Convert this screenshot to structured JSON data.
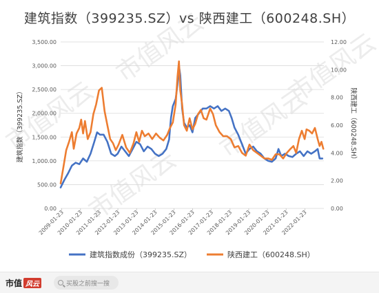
{
  "chart_data": {
    "type": "line",
    "title": "建筑指数（399235.SZ）vs 陕西建工（600248.SH）",
    "ylabel_left": "建筑指数（399235.SZ）",
    "ylabel_right": "陕西建工（600248.SH）",
    "ylim_left": [
      0,
      3500
    ],
    "ylim_right": [
      0,
      12
    ],
    "yticks_left": [
      "0.00",
      "500.00",
      "1,000.00",
      "1,500.00",
      "2,000.00",
      "2,500.00",
      "3,000.00",
      "3,500.00"
    ],
    "yticks_right": [
      "0.00",
      "2.00",
      "4.00",
      "6.00",
      "8.00",
      "10.00",
      "12.00"
    ],
    "xlim": [
      2009.0,
      2023.08
    ],
    "x_tick_labels": [
      "2009-01-23",
      "2010-01-23",
      "2011-01-23",
      "2012-01-23",
      "2013-01-23",
      "2014-01-23",
      "2015-01-23",
      "2016-01-23",
      "2017-01-23",
      "2018-01-23",
      "2019-01-23",
      "2020-01-23",
      "2021-01-23",
      "2022-01-23"
    ],
    "x_tick_years": [
      2009.06,
      2010.06,
      2011.06,
      2012.06,
      2013.06,
      2014.06,
      2015.06,
      2016.06,
      2017.06,
      2018.06,
      2019.06,
      2020.06,
      2021.06,
      2022.06
    ],
    "grid": true,
    "legend_position": "bottom",
    "series": [
      {
        "name": "建筑指数成份（399235.SZ）",
        "axis": "left",
        "color": "#4472C4",
        "points": [
          [
            2009.0,
            440
          ],
          [
            2009.2,
            600
          ],
          [
            2009.4,
            740
          ],
          [
            2009.6,
            900
          ],
          [
            2009.8,
            960
          ],
          [
            2010.0,
            930
          ],
          [
            2010.2,
            1050
          ],
          [
            2010.4,
            980
          ],
          [
            2010.6,
            1150
          ],
          [
            2010.8,
            1400
          ],
          [
            2010.95,
            1600
          ],
          [
            2011.1,
            1550
          ],
          [
            2011.3,
            1550
          ],
          [
            2011.5,
            1400
          ],
          [
            2011.7,
            1150
          ],
          [
            2011.9,
            1100
          ],
          [
            2012.05,
            1150
          ],
          [
            2012.25,
            1300
          ],
          [
            2012.45,
            1200
          ],
          [
            2012.65,
            1100
          ],
          [
            2012.85,
            1250
          ],
          [
            2013.05,
            1400
          ],
          [
            2013.25,
            1350
          ],
          [
            2013.45,
            1200
          ],
          [
            2013.65,
            1300
          ],
          [
            2013.85,
            1250
          ],
          [
            2014.05,
            1150
          ],
          [
            2014.25,
            1100
          ],
          [
            2014.45,
            1150
          ],
          [
            2014.65,
            1250
          ],
          [
            2014.8,
            1450
          ],
          [
            2014.9,
            1900
          ],
          [
            2015.0,
            2150
          ],
          [
            2015.15,
            2300
          ],
          [
            2015.25,
            2600
          ],
          [
            2015.33,
            3000
          ],
          [
            2015.4,
            2800
          ],
          [
            2015.5,
            2100
          ],
          [
            2015.6,
            1800
          ],
          [
            2015.75,
            1700
          ],
          [
            2015.9,
            1750
          ],
          [
            2016.05,
            1600
          ],
          [
            2016.2,
            1900
          ],
          [
            2016.4,
            2000
          ],
          [
            2016.6,
            2100
          ],
          [
            2016.8,
            2100
          ],
          [
            2017.0,
            2150
          ],
          [
            2017.2,
            2100
          ],
          [
            2017.4,
            2150
          ],
          [
            2017.6,
            2050
          ],
          [
            2017.8,
            2100
          ],
          [
            2018.0,
            2050
          ],
          [
            2018.15,
            1900
          ],
          [
            2018.3,
            1700
          ],
          [
            2018.5,
            1550
          ],
          [
            2018.7,
            1350
          ],
          [
            2018.9,
            1150
          ],
          [
            2019.1,
            1250
          ],
          [
            2019.3,
            1300
          ],
          [
            2019.5,
            1200
          ],
          [
            2019.7,
            1150
          ],
          [
            2019.9,
            1050
          ],
          [
            2020.1,
            1000
          ],
          [
            2020.3,
            980
          ],
          [
            2020.5,
            1050
          ],
          [
            2020.65,
            1250
          ],
          [
            2020.8,
            1100
          ],
          [
            2021.0,
            1150
          ],
          [
            2021.2,
            1100
          ],
          [
            2021.4,
            1080
          ],
          [
            2021.6,
            1150
          ],
          [
            2021.8,
            1200
          ],
          [
            2022.0,
            1100
          ],
          [
            2022.2,
            1200
          ],
          [
            2022.4,
            1150
          ],
          [
            2022.6,
            1200
          ],
          [
            2022.75,
            1250
          ],
          [
            2022.85,
            1050
          ],
          [
            2023.0,
            1050
          ]
        ]
      },
      {
        "name": "陕西建工（600248.SH）",
        "axis": "right",
        "color": "#ED7D31",
        "points": [
          [
            2009.0,
            1.8
          ],
          [
            2009.15,
            3.0
          ],
          [
            2009.3,
            4.2
          ],
          [
            2009.45,
            4.8
          ],
          [
            2009.6,
            5.5
          ],
          [
            2009.7,
            4.3
          ],
          [
            2009.85,
            5.4
          ],
          [
            2010.0,
            5.8
          ],
          [
            2010.1,
            6.4
          ],
          [
            2010.2,
            5.4
          ],
          [
            2010.3,
            6.3
          ],
          [
            2010.45,
            5.0
          ],
          [
            2010.6,
            5.5
          ],
          [
            2010.75,
            6.8
          ],
          [
            2010.9,
            7.5
          ],
          [
            2011.05,
            8.5
          ],
          [
            2011.2,
            8.7
          ],
          [
            2011.35,
            7.0
          ],
          [
            2011.5,
            6.0
          ],
          [
            2011.65,
            5.0
          ],
          [
            2011.8,
            4.7
          ],
          [
            2011.95,
            4.2
          ],
          [
            2012.1,
            4.6
          ],
          [
            2012.3,
            5.3
          ],
          [
            2012.5,
            4.4
          ],
          [
            2012.7,
            4.0
          ],
          [
            2012.9,
            4.7
          ],
          [
            2013.05,
            5.5
          ],
          [
            2013.2,
            4.8
          ],
          [
            2013.35,
            5.6
          ],
          [
            2013.5,
            5.2
          ],
          [
            2013.7,
            5.4
          ],
          [
            2013.9,
            5.0
          ],
          [
            2014.1,
            5.4
          ],
          [
            2014.3,
            5.1
          ],
          [
            2014.5,
            4.9
          ],
          [
            2014.7,
            5.3
          ],
          [
            2014.85,
            5.8
          ],
          [
            2015.0,
            6.2
          ],
          [
            2015.15,
            7.5
          ],
          [
            2015.25,
            9.5
          ],
          [
            2015.33,
            10.6
          ],
          [
            2015.4,
            8.5
          ],
          [
            2015.5,
            7.5
          ],
          [
            2015.6,
            6.0
          ],
          [
            2015.75,
            5.6
          ],
          [
            2015.9,
            6.5
          ],
          [
            2016.05,
            5.7
          ],
          [
            2016.2,
            6.1
          ],
          [
            2016.35,
            6.8
          ],
          [
            2016.5,
            7.1
          ],
          [
            2016.65,
            6.5
          ],
          [
            2016.8,
            6.4
          ],
          [
            2017.0,
            7.2
          ],
          [
            2017.15,
            6.8
          ],
          [
            2017.3,
            6.0
          ],
          [
            2017.5,
            5.5
          ],
          [
            2017.7,
            5.2
          ],
          [
            2017.9,
            5.2
          ],
          [
            2018.1,
            5.0
          ],
          [
            2018.3,
            4.4
          ],
          [
            2018.5,
            4.5
          ],
          [
            2018.7,
            4.0
          ],
          [
            2018.9,
            3.8
          ],
          [
            2019.1,
            4.6
          ],
          [
            2019.3,
            4.2
          ],
          [
            2019.5,
            4.0
          ],
          [
            2019.7,
            3.8
          ],
          [
            2019.9,
            3.6
          ],
          [
            2020.1,
            3.6
          ],
          [
            2020.3,
            3.5
          ],
          [
            2020.5,
            3.9
          ],
          [
            2020.7,
            3.9
          ],
          [
            2020.9,
            3.6
          ],
          [
            2021.1,
            4.0
          ],
          [
            2021.3,
            4.3
          ],
          [
            2021.45,
            4.5
          ],
          [
            2021.6,
            4.0
          ],
          [
            2021.75,
            5.0
          ],
          [
            2021.9,
            5.6
          ],
          [
            2022.05,
            5.0
          ],
          [
            2022.15,
            5.7
          ],
          [
            2022.3,
            5.6
          ],
          [
            2022.45,
            5.4
          ],
          [
            2022.6,
            5.8
          ],
          [
            2022.75,
            5.0
          ],
          [
            2022.85,
            4.5
          ],
          [
            2022.95,
            4.8
          ],
          [
            2023.05,
            4.3
          ]
        ]
      }
    ]
  },
  "watermark": "市值风云",
  "footer": {
    "brand_name": "市值",
    "brand_badge": "风云",
    "search_placeholder": "买股之前搜一搜"
  }
}
